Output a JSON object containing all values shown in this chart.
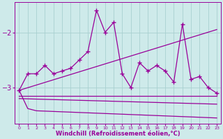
{
  "xlabel": "Windchill (Refroidissement éolien,°C)",
  "background_color": "#ceeaea",
  "grid_color": "#a8d0d0",
  "line_color": "#990099",
  "xlim": [
    -0.5,
    23.5
  ],
  "ylim": [
    -3.65,
    -1.45
  ],
  "yticks": [
    -3,
    -2
  ],
  "xticks": [
    0,
    1,
    2,
    3,
    4,
    5,
    6,
    7,
    8,
    9,
    10,
    11,
    12,
    13,
    14,
    15,
    16,
    17,
    18,
    19,
    20,
    21,
    22,
    23
  ],
  "main_x": [
    0,
    1,
    2,
    3,
    4,
    5,
    6,
    7,
    8,
    9,
    10,
    11,
    12,
    13,
    14,
    15,
    16,
    17,
    18,
    19,
    20,
    21,
    22,
    23
  ],
  "main_y": [
    -3.05,
    -2.75,
    -2.75,
    -2.6,
    -2.75,
    -2.7,
    -2.65,
    -2.5,
    -2.35,
    -1.6,
    -2.0,
    -1.82,
    -2.75,
    -3.0,
    -2.55,
    -2.7,
    -2.6,
    -2.7,
    -2.9,
    -1.85,
    -2.85,
    -2.8,
    -3.0,
    -3.1
  ],
  "line2_x": [
    0,
    23
  ],
  "line2_y": [
    -3.05,
    -1.95
  ],
  "line3_x": [
    0,
    23
  ],
  "line3_y": [
    -3.15,
    -3.15
  ],
  "line4_x": [
    0,
    23
  ],
  "line4_y": [
    -3.2,
    -3.3
  ],
  "line5_x": [
    0,
    1,
    2,
    23
  ],
  "line5_y": [
    -3.05,
    -3.38,
    -3.42,
    -3.55
  ]
}
